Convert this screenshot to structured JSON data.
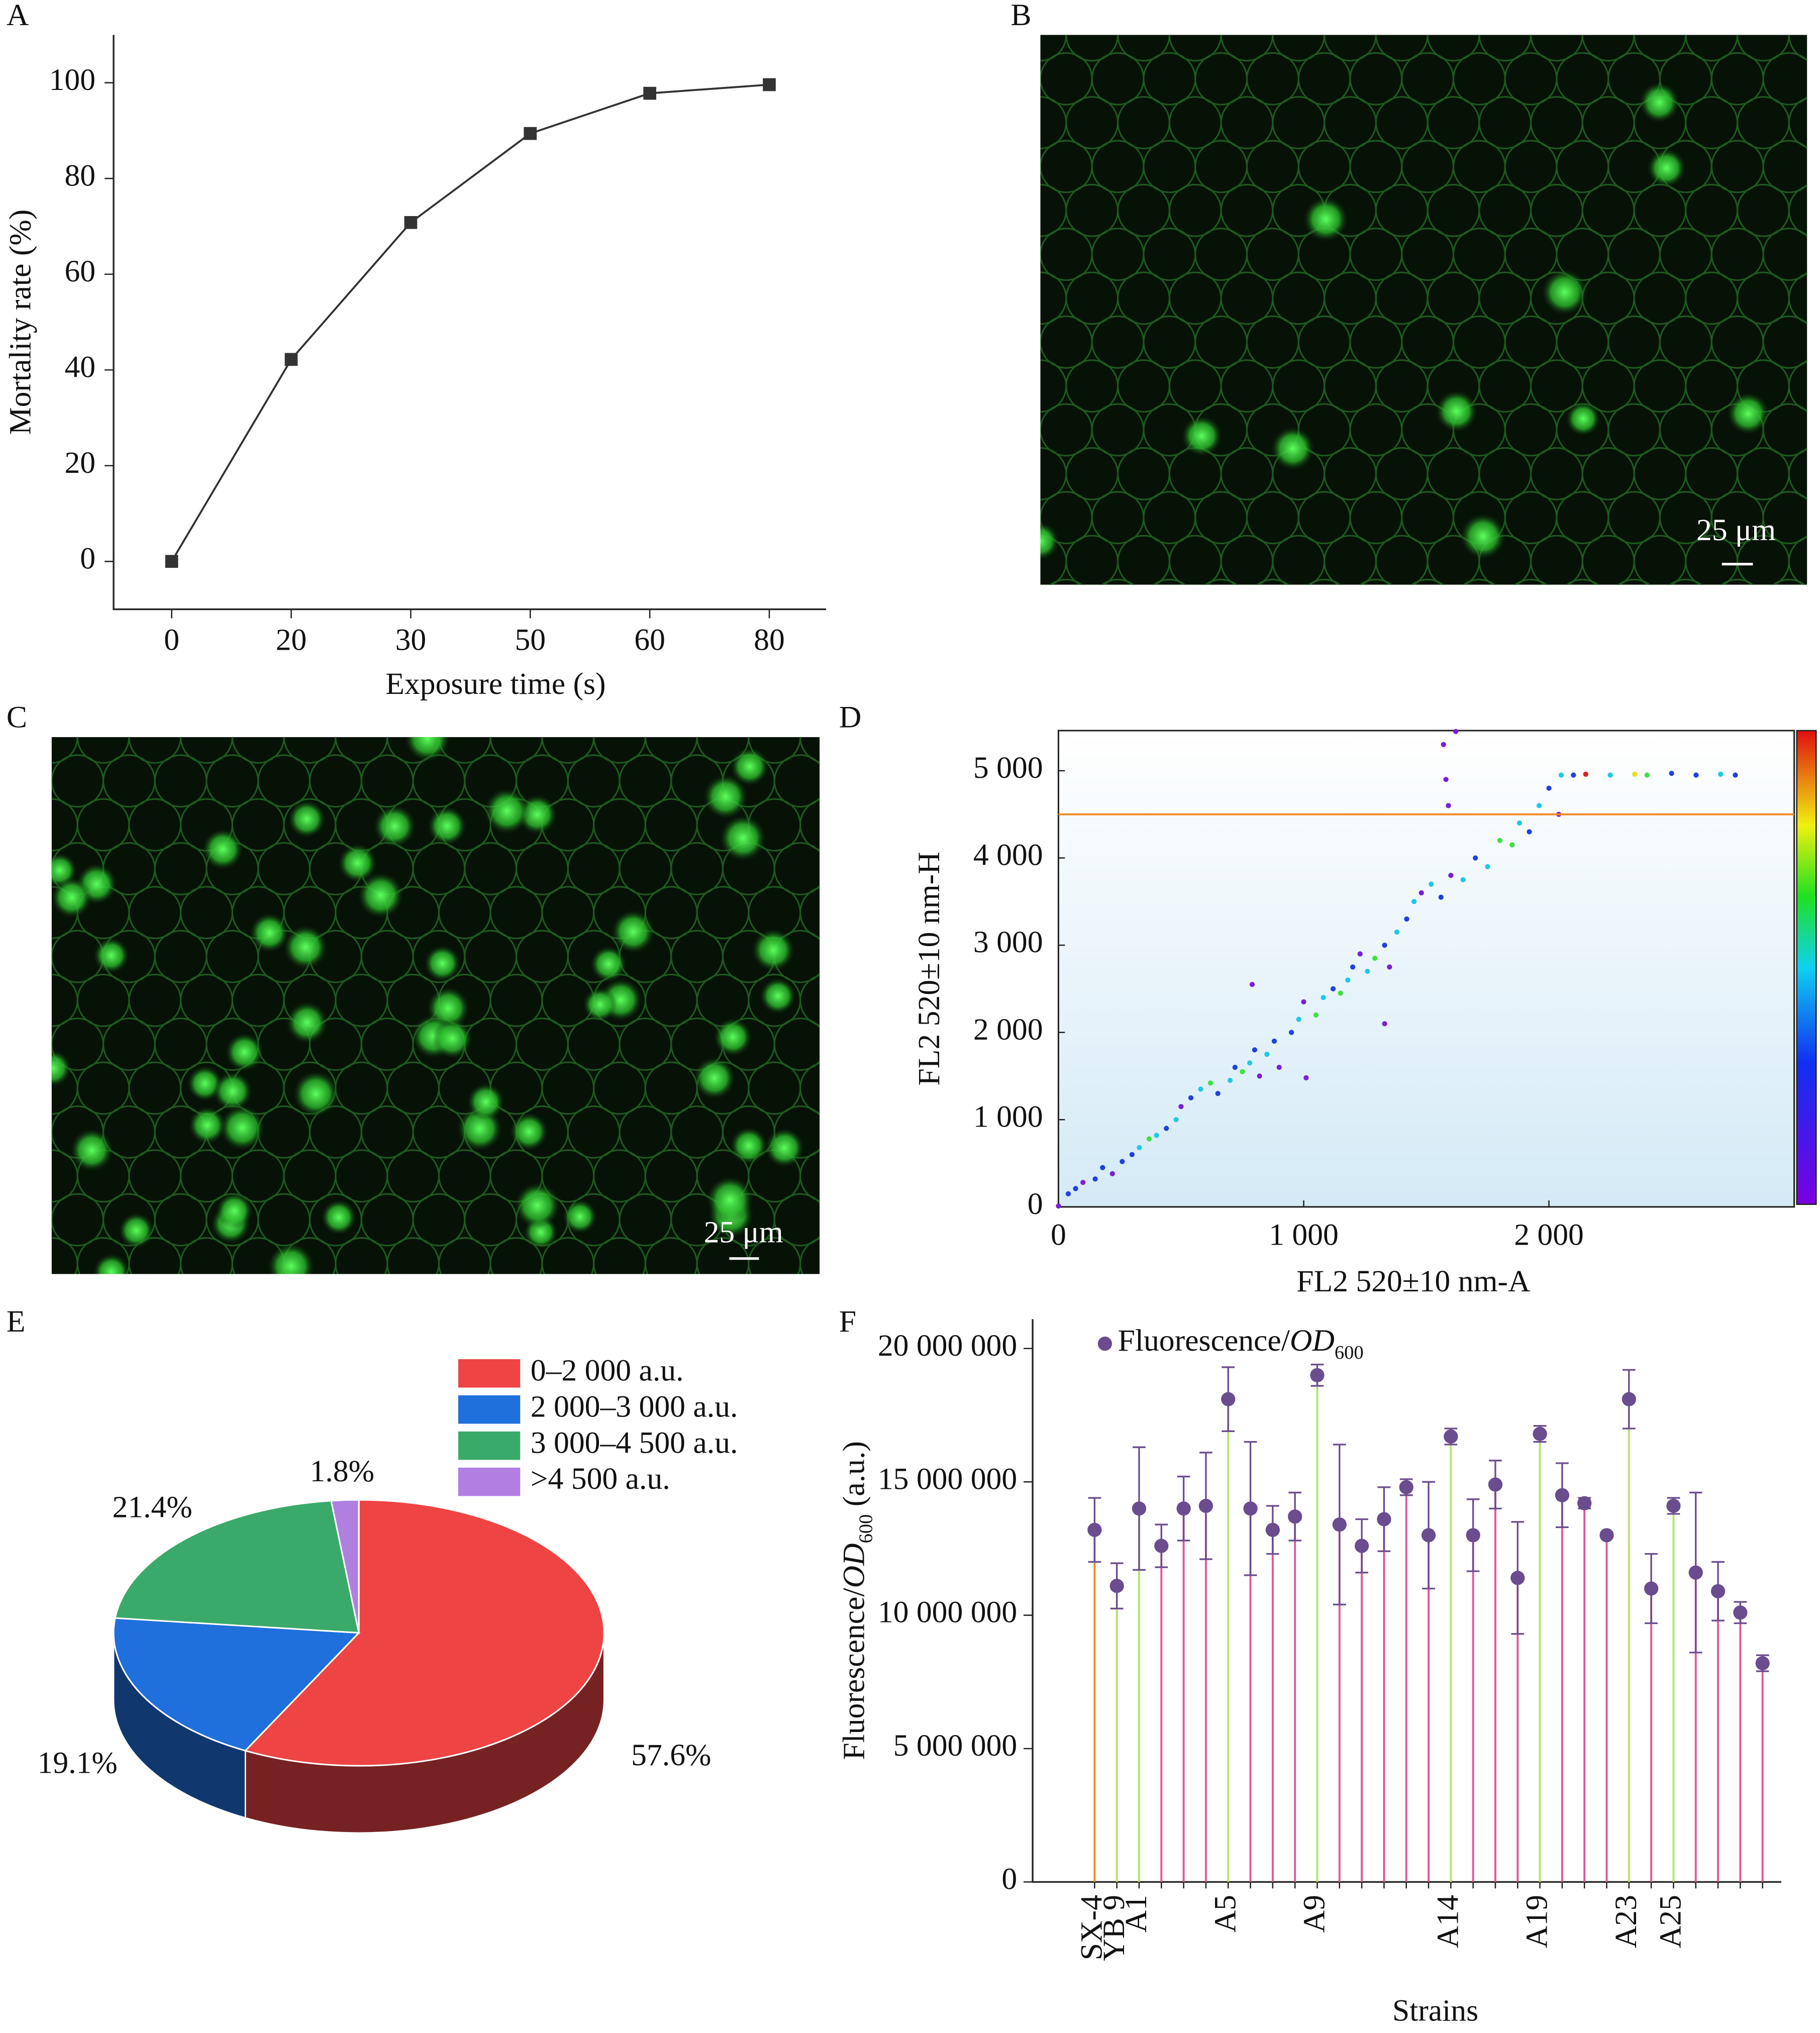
{
  "chart_data": [
    {
      "type": "line",
      "panel": "A",
      "x_label": "Exposure time (s)",
      "y_label": "Mortality rate (%)",
      "categories": [
        0,
        20,
        30,
        50,
        60,
        80
      ],
      "values": [
        0,
        42.2,
        70.8,
        89.4,
        97.8,
        99.6
      ],
      "color": "#333333",
      "ylim": [
        -10,
        110
      ],
      "yticks": [
        0,
        20,
        40,
        60,
        80,
        100
      ]
    },
    {
      "type": "image",
      "panel": "B",
      "scale_bar": "25 μm"
    },
    {
      "type": "image",
      "panel": "C",
      "scale_bar": "25 μm"
    },
    {
      "type": "scatter",
      "panel": "D",
      "x_label": "FL2 520±10 nm-A",
      "y_label": "FL2 520±10 nm-H",
      "x": [
        0,
        40,
        70,
        100,
        150,
        180,
        220,
        260,
        300,
        330,
        370,
        400,
        440,
        480,
        500,
        540,
        580,
        620,
        650,
        700,
        720,
        750,
        780,
        800,
        820,
        850,
        880,
        900,
        950,
        980,
        1000,
        1050,
        1080,
        1120,
        1150,
        1180,
        1200,
        1230,
        1260,
        1290,
        1330,
        1350,
        1380,
        1420,
        1450,
        1480,
        1520,
        1560,
        1600,
        1650,
        1700,
        1750,
        1800,
        1850,
        1880,
        1920,
        1960,
        2000,
        2040,
        2050,
        2100,
        2150,
        2250,
        2350,
        2400,
        2500,
        2600,
        2700,
        2760,
        1570,
        1580,
        1590,
        1620,
        790,
        1330,
        1010
      ],
      "y": [
        10,
        150,
        210,
        280,
        320,
        450,
        380,
        520,
        600,
        680,
        780,
        820,
        900,
        1000,
        1150,
        1250,
        1350,
        1420,
        1300,
        1450,
        1600,
        1550,
        1650,
        1800,
        1500,
        1750,
        1900,
        1600,
        2000,
        2150,
        2350,
        2200,
        2400,
        2500,
        2450,
        2600,
        2750,
        2900,
        2700,
        2850,
        3000,
        2750,
        3150,
        3300,
        3500,
        3600,
        3700,
        3550,
        3800,
        3750,
        4000,
        3900,
        4200,
        4150,
        4400,
        4300,
        4600,
        4800,
        4500,
        4950,
        4950,
        4960,
        4950,
        4960,
        4950,
        4970,
        4950,
        4960,
        4950,
        5300,
        4900,
        4600,
        5450,
        2550,
        2100,
        1480
      ],
      "colors": [
        "#7a1fd6",
        "#2040e0",
        "#2040e0",
        "#7a1fd6",
        "#2040e0",
        "#2040e0",
        "#7a1fd6",
        "#2040e0",
        "#2040e0",
        "#20c8e8",
        "#40e040",
        "#20c8e8",
        "#2040e0",
        "#20c8e8",
        "#7a1fd6",
        "#2040e0",
        "#20c8e8",
        "#40e040",
        "#2040e0",
        "#20c8e8",
        "#2040e0",
        "#40e040",
        "#20c8e8",
        "#2040e0",
        "#7a1fd6",
        "#20c8e8",
        "#2040e0",
        "#7a1fd6",
        "#2040e0",
        "#20c8e8",
        "#7a1fd6",
        "#40e040",
        "#20c8e8",
        "#2040e0",
        "#40e040",
        "#20c8e8",
        "#2040e0",
        "#7a1fd6",
        "#20c8e8",
        "#40e040",
        "#2040e0",
        "#7a1fd6",
        "#20c8e8",
        "#2040e0",
        "#20c8e8",
        "#7a1fd6",
        "#20c8e8",
        "#2040e0",
        "#7a1fd6",
        "#20c8e8",
        "#2040e0",
        "#20c8e8",
        "#40e040",
        "#40e040",
        "#20c8e8",
        "#2040e0",
        "#20c8e8",
        "#2040e0",
        "#7a1fd6",
        "#20c8e8",
        "#2040e0",
        "#e02020",
        "#20c8e8",
        "#e0e020",
        "#40e040",
        "#2040e0",
        "#2040e0",
        "#20c8e8",
        "#2040e0",
        "#7a1fd6",
        "#7a1fd6",
        "#7a1fd6",
        "#7a1fd6",
        "#7a1fd6",
        "#7a1fd6",
        "#7a1fd6"
      ],
      "xlim": [
        0,
        3000
      ],
      "ylim": [
        0,
        5460
      ],
      "xticks": [
        0,
        {
          "value": 1000,
          "label": "1 000"
        },
        {
          "value": 2000,
          "label": "2 000"
        }
      ],
      "yticks": [
        0,
        {
          "value": 1000,
          "label": "1 000"
        },
        {
          "value": 2000,
          "label": "2 000"
        },
        {
          "value": 3000,
          "label": "3 000"
        },
        {
          "value": 4000,
          "label": "4 000"
        },
        {
          "value": 5000,
          "label": "5 000"
        }
      ],
      "threshold": 4500,
      "threshold_color": "#f08a24",
      "colorbar": true
    },
    {
      "type": "pie",
      "panel": "E",
      "categories": [
        "0–2 000 a.u.",
        "2 000–3 000 a.u.",
        "3 000–4 500 a.u.",
        ">4 500 a.u."
      ],
      "values": [
        57.6,
        19.1,
        21.4,
        1.8
      ],
      "value_labels": [
        "57.6%",
        "19.1%",
        "21.4%",
        "1.8%"
      ],
      "colors": [
        "#ee4444",
        "#1f6fdc",
        "#3aaa6a",
        "#b07fe0"
      ]
    },
    {
      "type": "errorbar",
      "panel": "F",
      "x_label": "Strains",
      "y_label": [
        "Fluorescence/",
        "OD",
        "600",
        " (a.u.)"
      ],
      "categories": [
        "SX-4",
        "YB 9",
        "A1",
        null,
        null,
        null,
        "A5",
        null,
        null,
        null,
        "A9",
        null,
        null,
        null,
        null,
        null,
        "A14",
        null,
        null,
        null,
        "A19",
        null,
        null,
        null,
        "A23",
        null,
        "A25",
        null,
        null,
        null,
        null
      ],
      "ylim": [
        0,
        21100000
      ],
      "yticks": [
        0,
        {
          "value": 5000000,
          "label": "5 000 000"
        },
        {
          "value": 10000000,
          "label": "10 000 000"
        },
        {
          "value": 15000000,
          "label": "15 000 000"
        },
        {
          "value": 20000000,
          "label": "20 000 000"
        }
      ],
      "series": [
        {
          "name": [
            "Fluorescence/",
            "OD",
            "600"
          ],
          "color": "#6b4c8f",
          "values": [
            13200000,
            11100000,
            14000000,
            12600000,
            14000000,
            14100000,
            18100000,
            14000000,
            13200000,
            13700000,
            19000000,
            13400000,
            12600000,
            13600000,
            14800000,
            13000000,
            16700000,
            13000000,
            14900000,
            11400000,
            16800000,
            14500000,
            14200000,
            13000000,
            18100000,
            11000000,
            14100000,
            11600000,
            10900000,
            10100000,
            8200000
          ],
          "errors": [
            1200000,
            850000,
            2300000,
            800000,
            1200000,
            2000000,
            1200000,
            2500000,
            900000,
            900000,
            400000,
            3000000,
            1000000,
            1200000,
            300000,
            2000000,
            300000,
            1350000,
            900000,
            2100000,
            300000,
            1200000,
            200000,
            100000,
            1100000,
            1300000,
            300000,
            3000000,
            1100000,
            400000,
            300000
          ],
          "stem_colors": [
            "#f08a24",
            "#b5e36a",
            "#b5e36a",
            "#e0559a",
            "#e0559a",
            "#e0559a",
            "#b5e36a",
            "#e0559a",
            "#e0559a",
            "#e0559a",
            "#b5e36a",
            "#e0559a",
            "#e0559a",
            "#e0559a",
            "#e0559a",
            "#e0559a",
            "#b5e36a",
            "#e0559a",
            "#e0559a",
            "#e0559a",
            "#b5e36a",
            "#e0559a",
            "#e0559a",
            "#e0559a",
            "#b5e36a",
            "#e0559a",
            "#b5e36a",
            "#e0559a",
            "#e0559a",
            "#e0559a",
            "#e0559a"
          ]
        }
      ]
    }
  ]
}
